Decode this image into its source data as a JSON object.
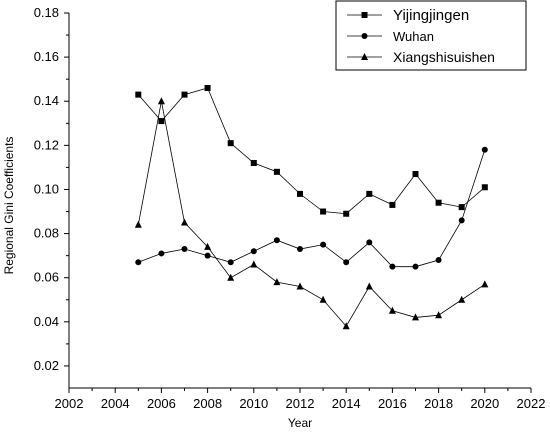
{
  "chart_data": {
    "type": "line",
    "xlabel": "Year",
    "ylabel": "Regional Gini Coefficients",
    "xlim": [
      2002,
      2022
    ],
    "ylim": [
      0.01,
      0.18
    ],
    "xticks": [
      2002,
      2004,
      2006,
      2008,
      2010,
      2012,
      2014,
      2016,
      2018,
      2020,
      2022
    ],
    "xtick_labels": [
      "2002",
      "2004",
      "2006",
      "2008",
      "2010",
      "2012",
      "2014",
      "2016",
      "2018",
      "2020",
      "2022"
    ],
    "yticks": [
      0.02,
      0.04,
      0.06,
      0.08,
      0.1,
      0.12,
      0.14,
      0.16,
      0.18
    ],
    "ytick_labels": [
      "0.02",
      "0.04",
      "0.06",
      "0.08",
      "0.10",
      "0.12",
      "0.14",
      "0.16",
      "0.18"
    ],
    "grid": false,
    "legend_position": "top-right",
    "x": [
      2005,
      2006,
      2007,
      2008,
      2009,
      2010,
      2011,
      2012,
      2013,
      2014,
      2015,
      2016,
      2017,
      2018,
      2019,
      2020
    ],
    "series": [
      {
        "name": "Yijingjingen",
        "marker": "square",
        "values": [
          0.143,
          0.131,
          0.143,
          0.146,
          0.121,
          0.112,
          0.108,
          0.098,
          0.09,
          0.089,
          0.098,
          0.093,
          0.107,
          0.094,
          0.092,
          0.101
        ]
      },
      {
        "name": "Wuhan",
        "marker": "circle",
        "values": [
          0.067,
          0.071,
          0.073,
          0.07,
          0.067,
          0.072,
          0.077,
          0.073,
          0.075,
          0.067,
          0.076,
          0.065,
          0.065,
          0.068,
          0.086,
          0.118
        ]
      },
      {
        "name": "Xiangshisuishen",
        "marker": "triangle",
        "values": [
          0.084,
          0.14,
          0.085,
          0.074,
          0.06,
          0.066,
          0.058,
          0.056,
          0.05,
          0.038,
          0.056,
          0.045,
          0.042,
          0.043,
          0.05,
          0.057
        ]
      }
    ]
  }
}
